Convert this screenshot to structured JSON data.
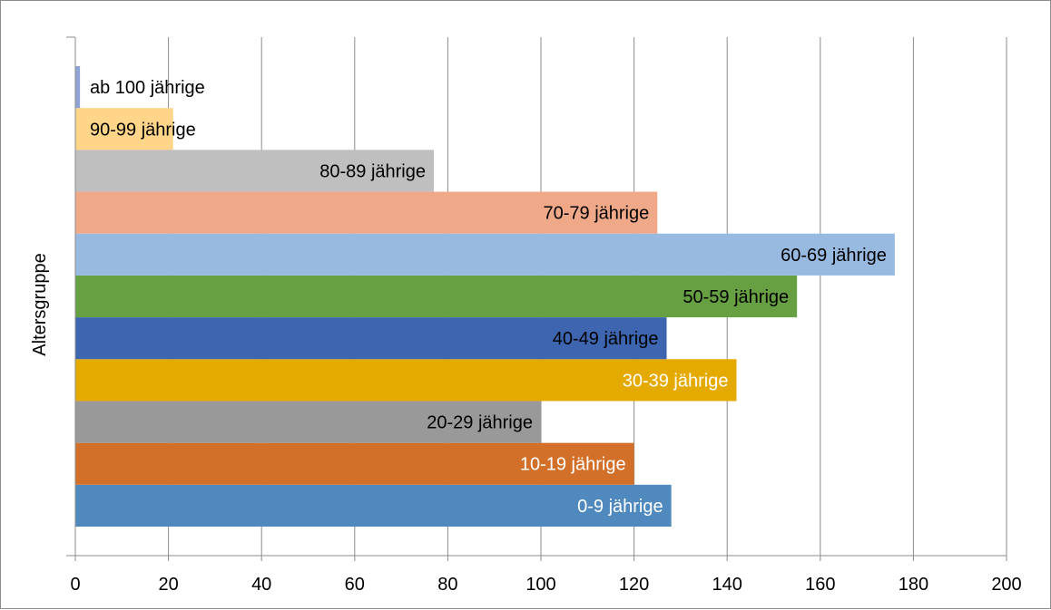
{
  "chart_data": {
    "type": "bar",
    "orientation": "horizontal",
    "title": "",
    "xlabel": "",
    "ylabel": "Altersgruppe",
    "xlim": [
      0,
      200
    ],
    "x_ticks": [
      0,
      20,
      40,
      60,
      80,
      100,
      120,
      140,
      160,
      180,
      200
    ],
    "x_tick_labels": [
      "0",
      "20",
      "40",
      "60",
      "80",
      "100",
      "120",
      "140",
      "160",
      "180",
      "200"
    ],
    "grid": "vertical",
    "legend": "none",
    "categories": [
      "0-9 jährige",
      "10-19 jährige",
      "20-29 jährige",
      "30-39 jährige",
      "40-49 jährige",
      "50-59 jährige",
      "60-69 jährige",
      "70-79 jährige",
      "80-89 jährige",
      "90-99 jährige",
      "ab 100 jährige"
    ],
    "values": [
      128,
      120,
      100,
      142,
      127,
      155,
      176,
      125,
      77,
      21,
      1
    ],
    "colors": [
      "#4f89bd",
      "#d2702a",
      "#999999",
      "#e5aa00",
      "#3e66b0",
      "#66a043",
      "#98b9e0",
      "#f0a988",
      "#bfbfbf",
      "#ffd58a",
      "#8fa3d4"
    ],
    "label_colors": [
      "#ffffff",
      "#ffffff",
      "#000000",
      "#ffffff",
      "#000000",
      "#000000",
      "#000000",
      "#000000",
      "#000000",
      "#000000",
      "#000000"
    ]
  }
}
